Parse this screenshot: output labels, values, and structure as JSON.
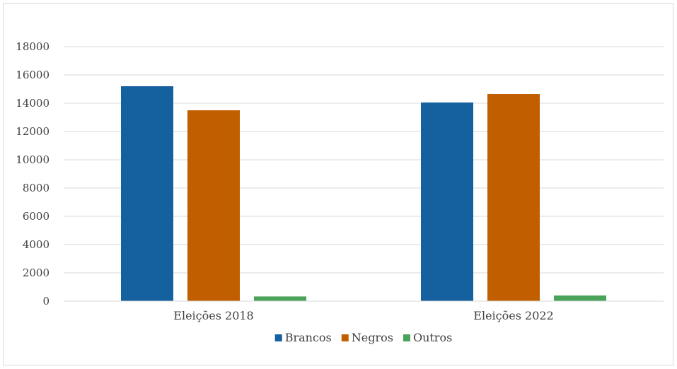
{
  "chart_data": {
    "type": "bar",
    "categories": [
      "Eleições 2018",
      "Eleições 2022"
    ],
    "series": [
      {
        "name": "Brancos",
        "values": [
          15200,
          14050
        ],
        "color": "#15609e"
      },
      {
        "name": "Negros",
        "values": [
          13500,
          14650
        ],
        "color": "#c05e00"
      },
      {
        "name": "Outros",
        "values": [
          330,
          400
        ],
        "color": "#4aa35a"
      }
    ],
    "yticks": [
      "0",
      "2000",
      "4000",
      "6000",
      "8000",
      "10000",
      "12000",
      "14000",
      "16000",
      "18000"
    ],
    "ylim": [
      0,
      18000
    ],
    "grid": true,
    "legend_position": "bottom",
    "gridline_color": "#d9d9d9"
  }
}
